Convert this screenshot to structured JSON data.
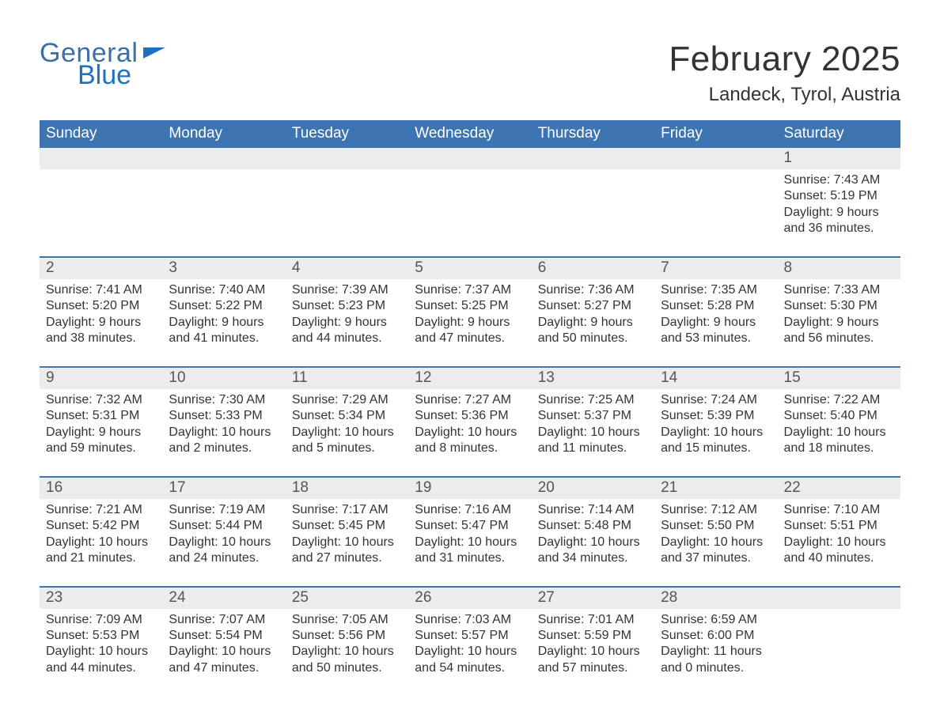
{
  "brand": {
    "general": "General",
    "blue": "Blue",
    "logo_color_dark": "#3d6fa6",
    "logo_color_blue": "#1f70c1"
  },
  "title": "February 2025",
  "location": "Landeck, Tyrol, Austria",
  "colors": {
    "header_bg": "#3d75b3",
    "band_bg": "#ececec",
    "rule": "#3d75b3",
    "text": "#333333",
    "background": "#ffffff"
  },
  "typography": {
    "title_fontsize": 44,
    "location_fontsize": 24,
    "dow_fontsize": 19,
    "daynum_fontsize": 19,
    "body_fontsize": 16
  },
  "layout": {
    "columns": 7,
    "week_start": "Sunday"
  },
  "days_of_week": [
    "Sunday",
    "Monday",
    "Tuesday",
    "Wednesday",
    "Thursday",
    "Friday",
    "Saturday"
  ],
  "weeks": [
    [
      {
        "n": "",
        "sunrise": "",
        "sunset": "",
        "daylight": ""
      },
      {
        "n": "",
        "sunrise": "",
        "sunset": "",
        "daylight": ""
      },
      {
        "n": "",
        "sunrise": "",
        "sunset": "",
        "daylight": ""
      },
      {
        "n": "",
        "sunrise": "",
        "sunset": "",
        "daylight": ""
      },
      {
        "n": "",
        "sunrise": "",
        "sunset": "",
        "daylight": ""
      },
      {
        "n": "",
        "sunrise": "",
        "sunset": "",
        "daylight": ""
      },
      {
        "n": "1",
        "sunrise": "Sunrise: 7:43 AM",
        "sunset": "Sunset: 5:19 PM",
        "daylight": "Daylight: 9 hours and 36 minutes."
      }
    ],
    [
      {
        "n": "2",
        "sunrise": "Sunrise: 7:41 AM",
        "sunset": "Sunset: 5:20 PM",
        "daylight": "Daylight: 9 hours and 38 minutes."
      },
      {
        "n": "3",
        "sunrise": "Sunrise: 7:40 AM",
        "sunset": "Sunset: 5:22 PM",
        "daylight": "Daylight: 9 hours and 41 minutes."
      },
      {
        "n": "4",
        "sunrise": "Sunrise: 7:39 AM",
        "sunset": "Sunset: 5:23 PM",
        "daylight": "Daylight: 9 hours and 44 minutes."
      },
      {
        "n": "5",
        "sunrise": "Sunrise: 7:37 AM",
        "sunset": "Sunset: 5:25 PM",
        "daylight": "Daylight: 9 hours and 47 minutes."
      },
      {
        "n": "6",
        "sunrise": "Sunrise: 7:36 AM",
        "sunset": "Sunset: 5:27 PM",
        "daylight": "Daylight: 9 hours and 50 minutes."
      },
      {
        "n": "7",
        "sunrise": "Sunrise: 7:35 AM",
        "sunset": "Sunset: 5:28 PM",
        "daylight": "Daylight: 9 hours and 53 minutes."
      },
      {
        "n": "8",
        "sunrise": "Sunrise: 7:33 AM",
        "sunset": "Sunset: 5:30 PM",
        "daylight": "Daylight: 9 hours and 56 minutes."
      }
    ],
    [
      {
        "n": "9",
        "sunrise": "Sunrise: 7:32 AM",
        "sunset": "Sunset: 5:31 PM",
        "daylight": "Daylight: 9 hours and 59 minutes."
      },
      {
        "n": "10",
        "sunrise": "Sunrise: 7:30 AM",
        "sunset": "Sunset: 5:33 PM",
        "daylight": "Daylight: 10 hours and 2 minutes."
      },
      {
        "n": "11",
        "sunrise": "Sunrise: 7:29 AM",
        "sunset": "Sunset: 5:34 PM",
        "daylight": "Daylight: 10 hours and 5 minutes."
      },
      {
        "n": "12",
        "sunrise": "Sunrise: 7:27 AM",
        "sunset": "Sunset: 5:36 PM",
        "daylight": "Daylight: 10 hours and 8 minutes."
      },
      {
        "n": "13",
        "sunrise": "Sunrise: 7:25 AM",
        "sunset": "Sunset: 5:37 PM",
        "daylight": "Daylight: 10 hours and 11 minutes."
      },
      {
        "n": "14",
        "sunrise": "Sunrise: 7:24 AM",
        "sunset": "Sunset: 5:39 PM",
        "daylight": "Daylight: 10 hours and 15 minutes."
      },
      {
        "n": "15",
        "sunrise": "Sunrise: 7:22 AM",
        "sunset": "Sunset: 5:40 PM",
        "daylight": "Daylight: 10 hours and 18 minutes."
      }
    ],
    [
      {
        "n": "16",
        "sunrise": "Sunrise: 7:21 AM",
        "sunset": "Sunset: 5:42 PM",
        "daylight": "Daylight: 10 hours and 21 minutes."
      },
      {
        "n": "17",
        "sunrise": "Sunrise: 7:19 AM",
        "sunset": "Sunset: 5:44 PM",
        "daylight": "Daylight: 10 hours and 24 minutes."
      },
      {
        "n": "18",
        "sunrise": "Sunrise: 7:17 AM",
        "sunset": "Sunset: 5:45 PM",
        "daylight": "Daylight: 10 hours and 27 minutes."
      },
      {
        "n": "19",
        "sunrise": "Sunrise: 7:16 AM",
        "sunset": "Sunset: 5:47 PM",
        "daylight": "Daylight: 10 hours and 31 minutes."
      },
      {
        "n": "20",
        "sunrise": "Sunrise: 7:14 AM",
        "sunset": "Sunset: 5:48 PM",
        "daylight": "Daylight: 10 hours and 34 minutes."
      },
      {
        "n": "21",
        "sunrise": "Sunrise: 7:12 AM",
        "sunset": "Sunset: 5:50 PM",
        "daylight": "Daylight: 10 hours and 37 minutes."
      },
      {
        "n": "22",
        "sunrise": "Sunrise: 7:10 AM",
        "sunset": "Sunset: 5:51 PM",
        "daylight": "Daylight: 10 hours and 40 minutes."
      }
    ],
    [
      {
        "n": "23",
        "sunrise": "Sunrise: 7:09 AM",
        "sunset": "Sunset: 5:53 PM",
        "daylight": "Daylight: 10 hours and 44 minutes."
      },
      {
        "n": "24",
        "sunrise": "Sunrise: 7:07 AM",
        "sunset": "Sunset: 5:54 PM",
        "daylight": "Daylight: 10 hours and 47 minutes."
      },
      {
        "n": "25",
        "sunrise": "Sunrise: 7:05 AM",
        "sunset": "Sunset: 5:56 PM",
        "daylight": "Daylight: 10 hours and 50 minutes."
      },
      {
        "n": "26",
        "sunrise": "Sunrise: 7:03 AM",
        "sunset": "Sunset: 5:57 PM",
        "daylight": "Daylight: 10 hours and 54 minutes."
      },
      {
        "n": "27",
        "sunrise": "Sunrise: 7:01 AM",
        "sunset": "Sunset: 5:59 PM",
        "daylight": "Daylight: 10 hours and 57 minutes."
      },
      {
        "n": "28",
        "sunrise": "Sunrise: 6:59 AM",
        "sunset": "Sunset: 6:00 PM",
        "daylight": "Daylight: 11 hours and 0 minutes."
      },
      {
        "n": "",
        "sunrise": "",
        "sunset": "",
        "daylight": ""
      }
    ]
  ]
}
